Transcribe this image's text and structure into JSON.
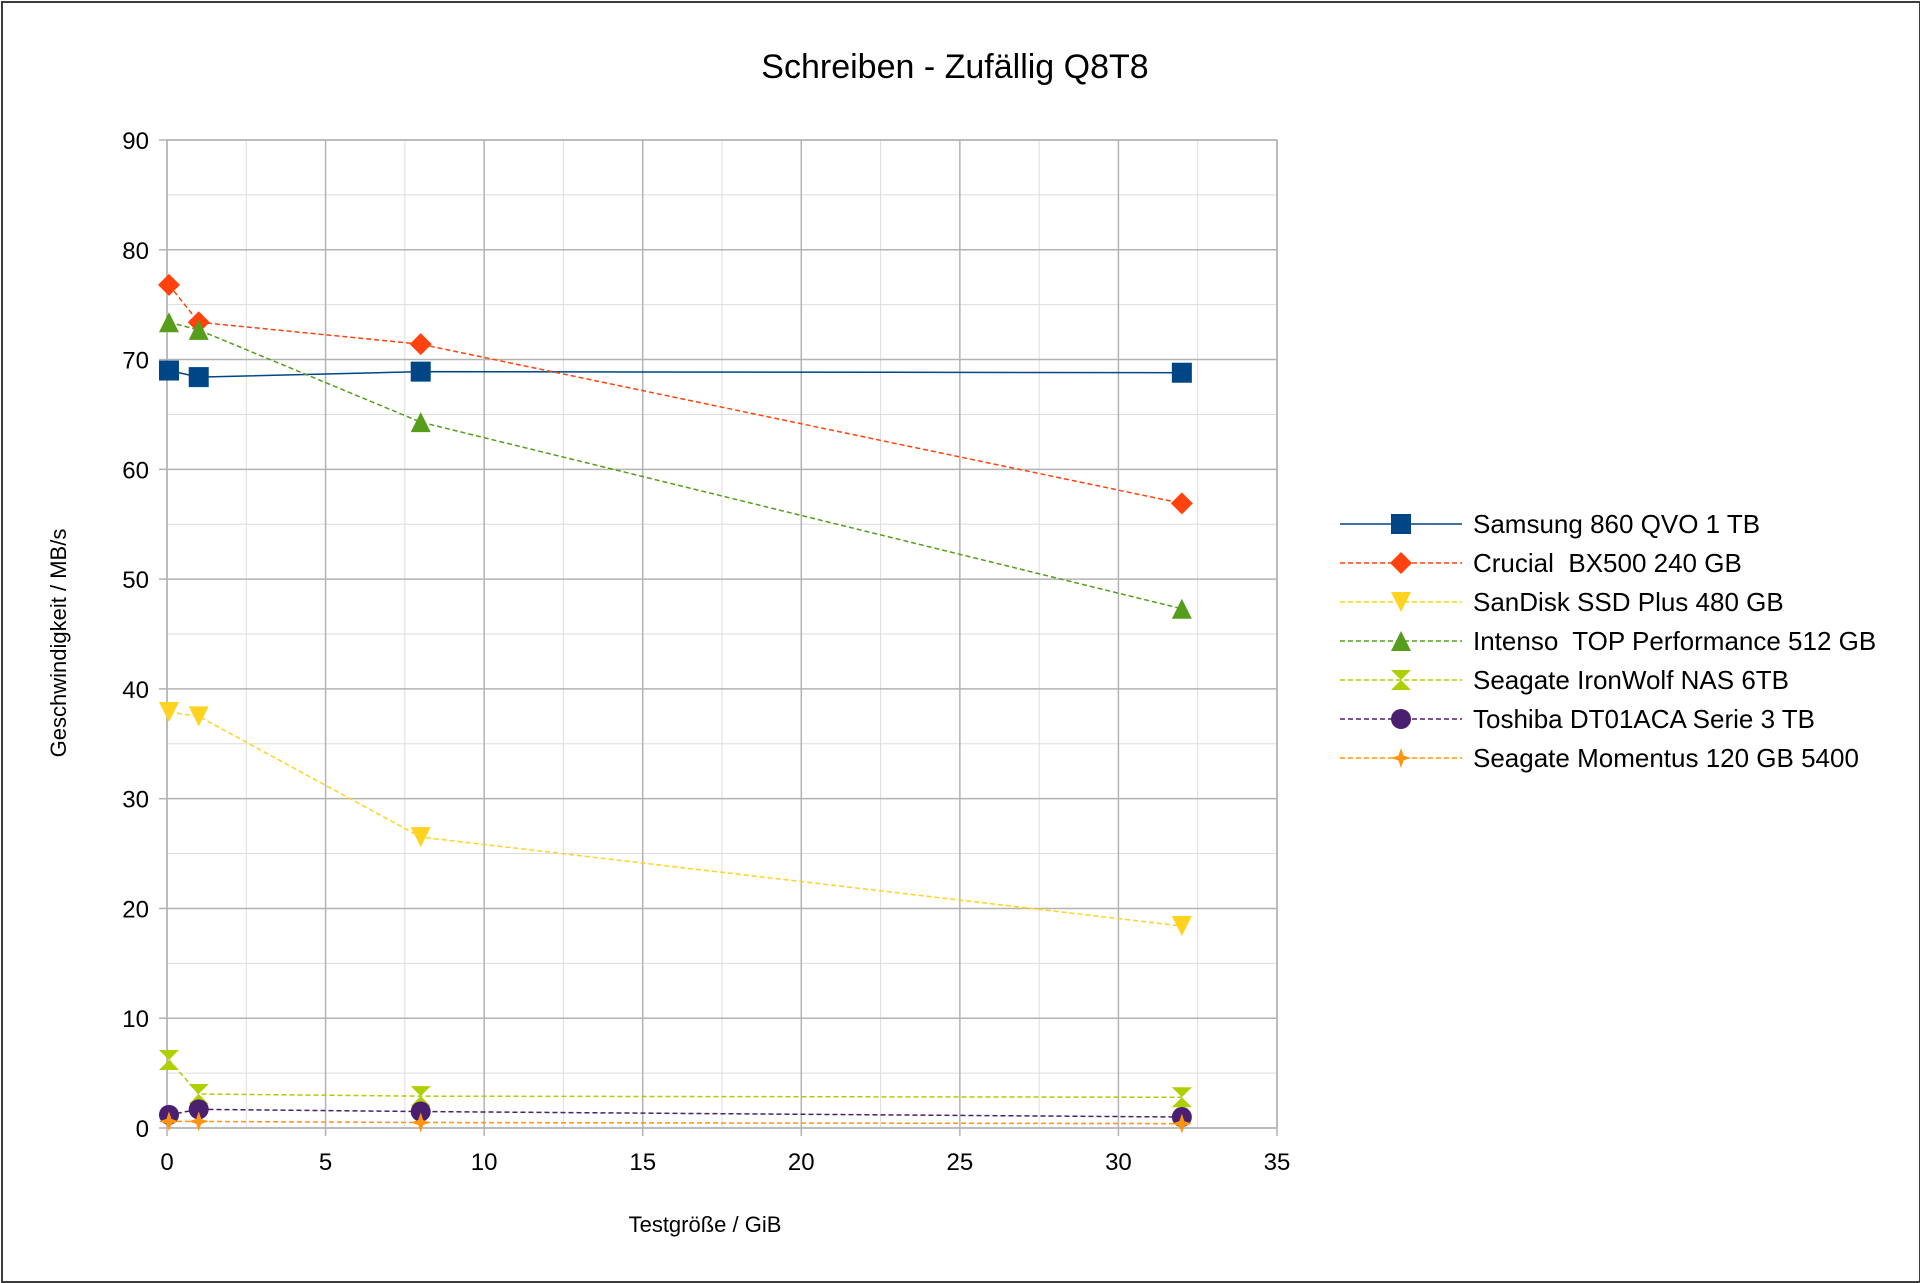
{
  "chart_data": {
    "type": "line",
    "title": "Schreiben - Zufällig Q8T8",
    "xlabel": "Testgröße / GiB",
    "ylabel": "Geschwindigkeit / MB/s",
    "xlim": [
      0,
      35
    ],
    "ylim": [
      0,
      90
    ],
    "xticks": [
      0,
      5,
      10,
      15,
      20,
      25,
      30,
      35
    ],
    "yticks": [
      0,
      10,
      20,
      30,
      40,
      50,
      60,
      70,
      80,
      90
    ],
    "grid": true,
    "legend_position": "right",
    "x": [
      0.0625,
      1,
      8,
      32
    ],
    "series": [
      {
        "name": "Samsung 860 QVO 1 TB",
        "values": [
          69.0,
          68.4,
          68.9,
          68.8
        ],
        "color": "#004586",
        "marker": "square",
        "dashed": false
      },
      {
        "name": "Crucial  BX500 240 GB",
        "values": [
          76.8,
          73.4,
          71.4,
          56.9
        ],
        "color": "#ff420e",
        "marker": "diamond",
        "dashed": true
      },
      {
        "name": "SanDisk SSD Plus 480 GB",
        "values": [
          37.9,
          37.5,
          26.5,
          18.4
        ],
        "color": "#ffd320",
        "marker": "triangle-down",
        "dashed": true
      },
      {
        "name": "Intenso  TOP Performance 512 GB",
        "values": [
          73.4,
          72.7,
          64.3,
          47.3
        ],
        "color": "#579d1c",
        "marker": "triangle-up",
        "dashed": true
      },
      {
        "name": "Seagate IronWolf NAS 6TB",
        "values": [
          6.2,
          3.1,
          2.9,
          2.8
        ],
        "color": "#aecf00",
        "marker": "bowtie",
        "dashed": true
      },
      {
        "name": "Toshiba DT01ACA Serie 3 TB",
        "values": [
          1.2,
          1.7,
          1.5,
          1.0
        ],
        "color": "#4b1f6f",
        "marker": "circle",
        "dashed": true
      },
      {
        "name": "Seagate Momentus 120 GB 5400",
        "values": [
          0.6,
          0.6,
          0.5,
          0.4
        ],
        "color": "#ff950e",
        "marker": "star",
        "dashed": true
      }
    ]
  }
}
